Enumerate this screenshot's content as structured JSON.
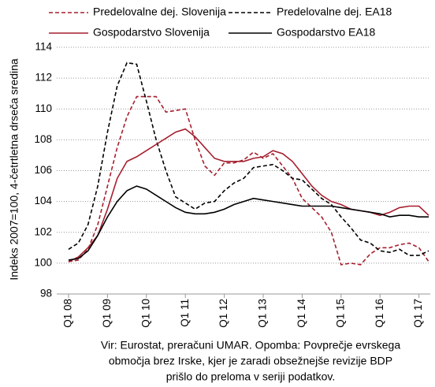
{
  "chart_data": {
    "type": "line",
    "y_label": "Indeks 2007=100, 4-četrtletna drseča sredina",
    "note": [
      "Vir: Eurostat, preračuni UMAR. Opomba: Povprečje evrskega",
      "območja brez Irske, kjer je zaradi obsežnejše revizije BDP",
      "prišlo do preloma v seriji podatkov."
    ],
    "categories": [
      "Q1 08",
      null,
      null,
      null,
      "Q1 09",
      null,
      null,
      null,
      "Q1 10",
      null,
      null,
      null,
      "Q1 11",
      null,
      null,
      null,
      "Q1 12",
      null,
      null,
      null,
      "Q1 13",
      null,
      null,
      null,
      "Q1 14",
      null,
      null,
      null,
      "Q1 15",
      null,
      null,
      null,
      "Q1 16",
      null,
      null,
      null,
      "Q1 17",
      null
    ],
    "ylim": [
      98,
      114
    ],
    "yticks": [
      98,
      100,
      102,
      104,
      106,
      108,
      110,
      112,
      114
    ],
    "grid": true,
    "series": [
      {
        "name": "Predelovalne dej. Slovenija",
        "color": "#a51f2d",
        "dashed": true,
        "values": [
          100.1,
          100.2,
          100.9,
          102.5,
          105,
          107.5,
          109.5,
          110.8,
          110.8,
          110.8,
          109.8,
          109.9,
          110.0,
          108,
          106.3,
          105.7,
          106.5,
          106.5,
          106.7,
          107.2,
          106.8,
          107.1,
          106.3,
          105.5,
          104.2,
          103.6,
          103.0,
          102.0,
          99.9,
          100.0,
          99.9,
          100.6,
          101.0,
          101.0,
          101.2,
          101.3,
          101.0,
          100.1
        ]
      },
      {
        "name": "Predelovalne dej. EA18",
        "color": "#000000",
        "dashed": true,
        "values": [
          100.9,
          101.3,
          102.5,
          105,
          108.5,
          111.5,
          113.0,
          112.9,
          110.5,
          108,
          106,
          104.3,
          103.9,
          103.5,
          103.9,
          104.0,
          104.7,
          105.2,
          105.5,
          106.2,
          106.3,
          106.4,
          106.0,
          105.5,
          105.4,
          104.8,
          104.2,
          103.8,
          103.0,
          102.3,
          101.5,
          101.3,
          100.8,
          100.7,
          100.9,
          100.5,
          100.5,
          100.8
        ]
      },
      {
        "name": "Gospodarstvo Slovenija",
        "color": "#a51f2d",
        "dashed": false,
        "values": [
          100.1,
          100.4,
          101.0,
          101.8,
          103.5,
          105.5,
          106.6,
          106.9,
          107.3,
          107.7,
          108.1,
          108.5,
          108.7,
          108.2,
          107.5,
          106.8,
          106.6,
          106.6,
          106.6,
          106.8,
          106.9,
          107.3,
          107.1,
          106.6,
          105.8,
          105.0,
          104.4,
          104.0,
          103.8,
          103.5,
          103.4,
          103.3,
          103.1,
          103.3,
          103.6,
          103.7,
          103.7,
          103.1
        ]
      },
      {
        "name": "Gospodarstvo EA18",
        "color": "#000000",
        "dashed": false,
        "values": [
          100.2,
          100.3,
          100.8,
          101.8,
          103.0,
          104.0,
          104.7,
          105.0,
          104.8,
          104.4,
          104.0,
          103.6,
          103.3,
          103.2,
          103.2,
          103.3,
          103.5,
          103.8,
          104.0,
          104.2,
          104.1,
          104.0,
          103.9,
          103.8,
          103.7,
          103.7,
          103.7,
          103.7,
          103.6,
          103.5,
          103.4,
          103.3,
          103.2,
          103.0,
          103.1,
          103.1,
          103.0,
          103.0
        ]
      }
    ]
  }
}
